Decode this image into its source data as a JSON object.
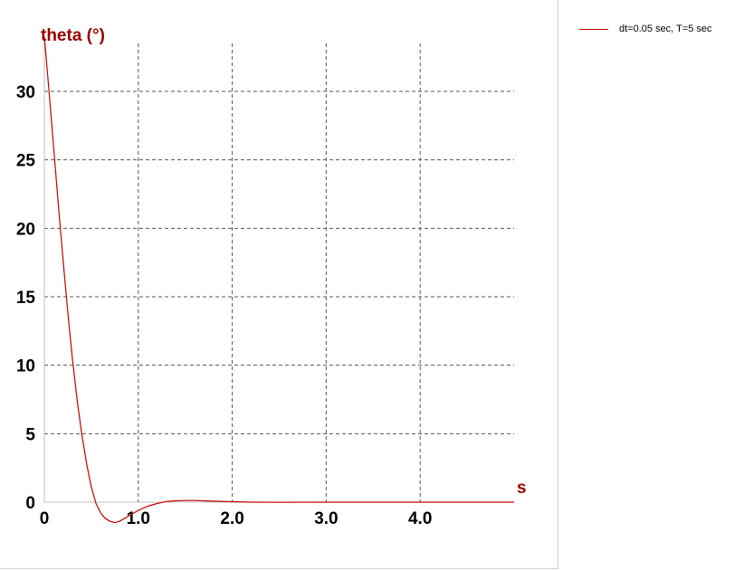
{
  "chart_data": {
    "type": "line",
    "ylabel": "theta (°)",
    "xlabel": "s",
    "xlim": [
      0,
      5.0
    ],
    "ylim": [
      0,
      33.5
    ],
    "x_ticks": [
      {
        "value": 0,
        "label": "0"
      },
      {
        "value": 1,
        "label": "1.0"
      },
      {
        "value": 2,
        "label": "2.0"
      },
      {
        "value": 3,
        "label": "3.0"
      },
      {
        "value": 4,
        "label": "4.0"
      }
    ],
    "y_ticks": [
      {
        "value": 0,
        "label": "0"
      },
      {
        "value": 5,
        "label": "5"
      },
      {
        "value": 10,
        "label": "10"
      },
      {
        "value": 15,
        "label": "15"
      },
      {
        "value": 20,
        "label": "20"
      },
      {
        "value": 25,
        "label": "25"
      },
      {
        "value": 30,
        "label": "30"
      }
    ],
    "grid": true,
    "legend_position": "top-right",
    "series": [
      {
        "name": "dt=0.05 sec, T=5 sec",
        "color": "#c00000",
        "x": [
          0,
          0.05,
          0.1,
          0.15,
          0.2,
          0.25,
          0.3,
          0.35,
          0.4,
          0.45,
          0.5,
          0.55,
          0.6,
          0.65,
          0.7,
          0.75,
          0.8,
          0.85,
          0.9,
          0.95,
          1.0,
          1.1,
          1.2,
          1.3,
          1.4,
          1.5,
          1.6,
          1.7,
          1.8,
          2.0,
          2.2,
          2.5,
          3.0,
          3.5,
          4.0,
          4.5,
          5.0
        ],
        "y": [
          34.0,
          30.0,
          25.8,
          21.6,
          17.6,
          13.8,
          10.4,
          7.4,
          4.9,
          2.8,
          1.1,
          -0.1,
          -0.8,
          -1.2,
          -1.4,
          -1.5,
          -1.4,
          -1.2,
          -1.0,
          -0.8,
          -0.6,
          -0.3,
          -0.1,
          0.05,
          0.1,
          0.12,
          0.12,
          0.1,
          0.07,
          0.03,
          0.0,
          -0.01,
          0.0,
          0.0,
          0.0,
          0.0,
          0.0
        ]
      }
    ]
  }
}
